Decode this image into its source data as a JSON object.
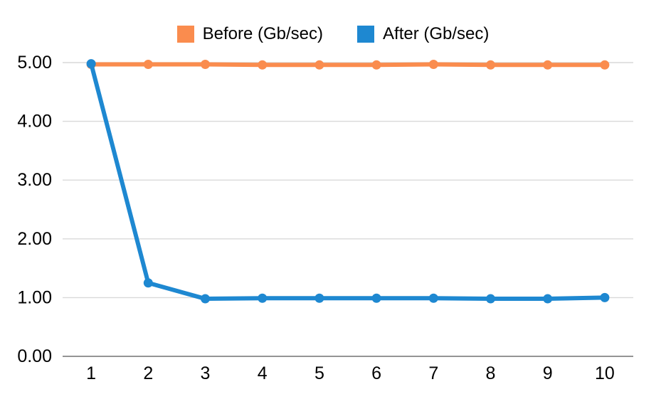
{
  "chart_data": {
    "type": "line",
    "x": [
      "1",
      "2",
      "3",
      "4",
      "5",
      "6",
      "7",
      "8",
      "9",
      "10"
    ],
    "series": [
      {
        "name": "Before (Gb/sec)",
        "slug": "before",
        "color": "#FA8C4E",
        "values": [
          4.97,
          4.97,
          4.97,
          4.96,
          4.96,
          4.96,
          4.97,
          4.96,
          4.96,
          4.96
        ]
      },
      {
        "name": "After (Gb/sec)",
        "slug": "after",
        "color": "#1E88D1",
        "values": [
          4.98,
          1.25,
          0.98,
          0.99,
          0.99,
          0.99,
          0.99,
          0.98,
          0.98,
          1.0
        ]
      }
    ],
    "title": "",
    "xlabel": "",
    "ylabel": "",
    "ylim": [
      0,
      5
    ],
    "yticks": [
      0,
      1,
      2,
      3,
      4,
      5
    ],
    "ytick_labels": [
      "0.00",
      "1.00",
      "2.00",
      "3.00",
      "4.00",
      "5.00"
    ],
    "grid": true,
    "legend_position": "top"
  },
  "colors": {
    "grid": "#d9d9d9",
    "axis": "#949494",
    "text": "#000000",
    "background": "#ffffff"
  }
}
